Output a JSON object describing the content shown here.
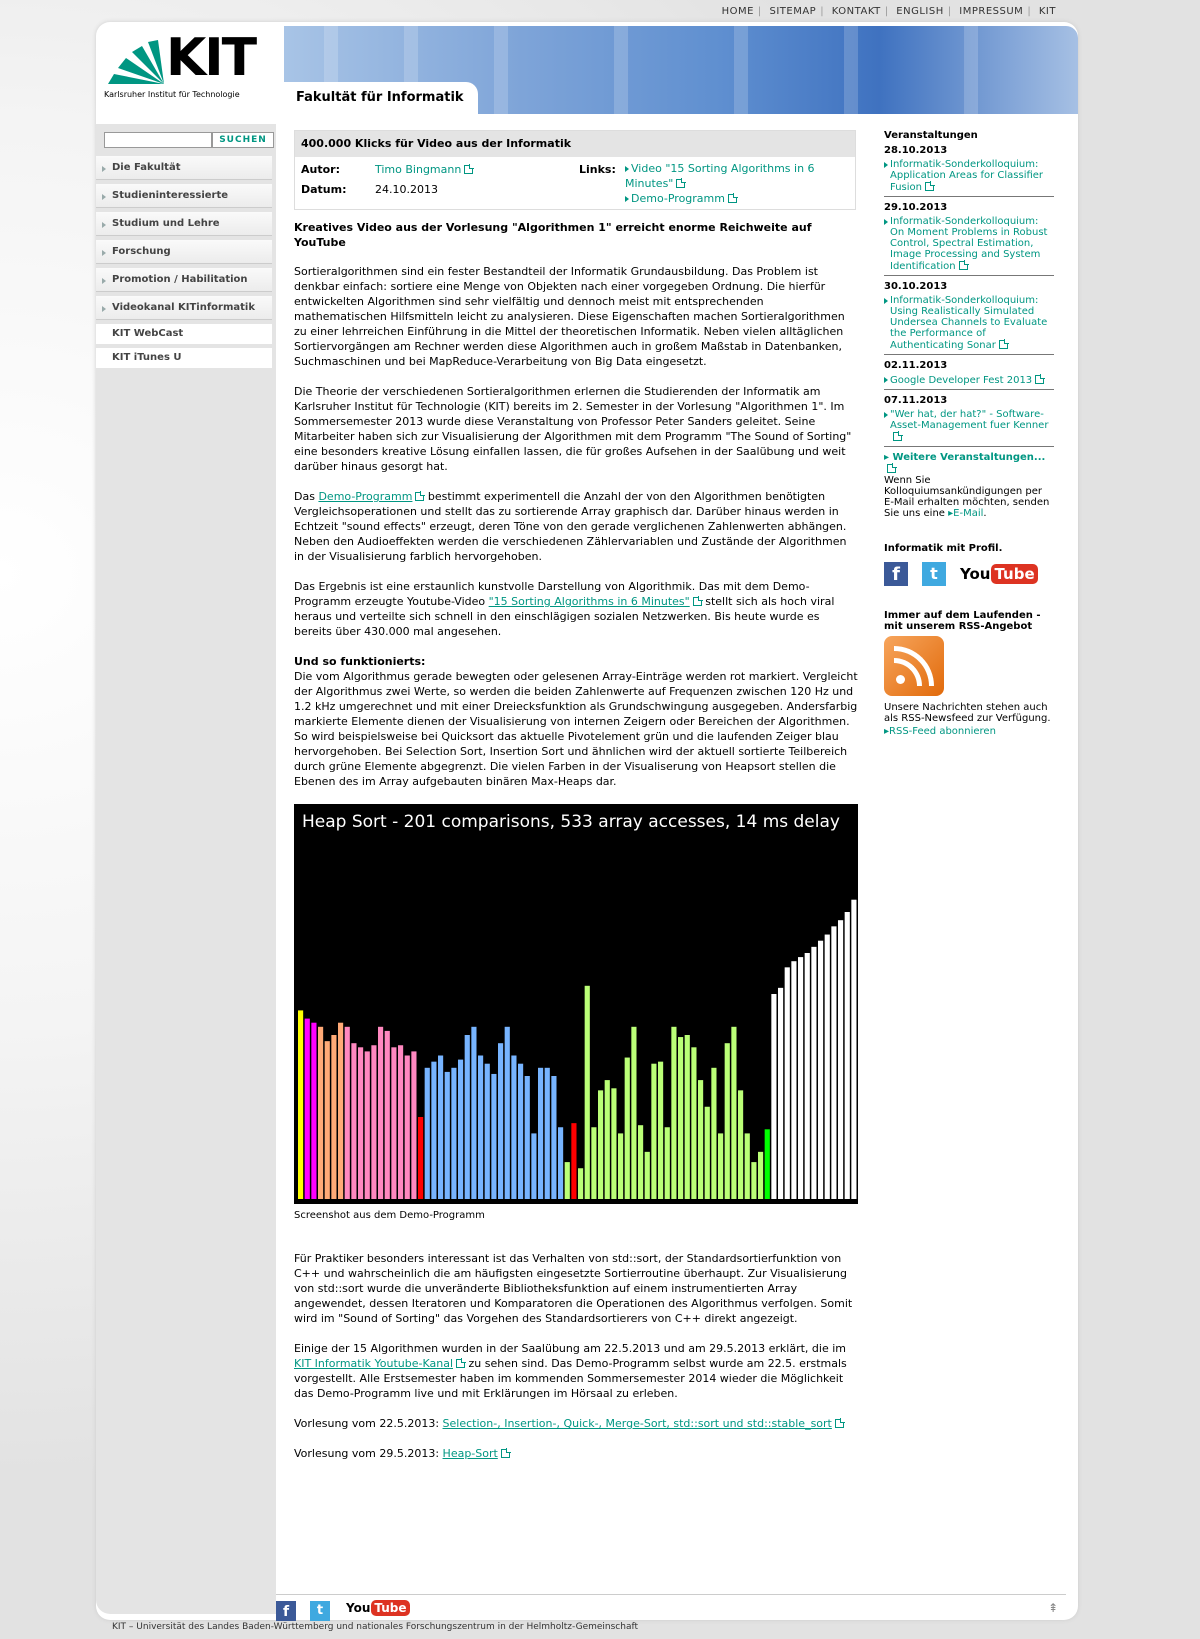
{
  "topnav": [
    "HOME",
    "SITEMAP",
    "KONTAKT",
    "ENGLISH",
    "IMPRESSUM",
    "KIT"
  ],
  "logo": {
    "mark": "KIT",
    "subtitle": "Karlsruher Institut für Technologie"
  },
  "faculty": "Fakultät für Informatik",
  "search": {
    "button": "SUCHEN",
    "placeholder": ""
  },
  "menu": [
    "Die Fakultät",
    "Studieninteressierte",
    "Studium und Lehre",
    "Forschung",
    "Promotion / Habilitation",
    "Videokanal KITinformatik"
  ],
  "menu_plain": [
    "KIT WebCast",
    "KIT iTunes U"
  ],
  "info": {
    "title": "400.000 Klicks für Video aus der Informatik",
    "author_label": "Autor:",
    "author": "Timo Bingmann",
    "date_label": "Datum:",
    "date": "24.10.2013",
    "links_label": "Links:",
    "link1": "Video \"15 Sorting Algorithms in 6 Minutes\"",
    "link2": "Demo-Programm"
  },
  "article": {
    "headline": "Kreatives Video aus der Vorlesung \"Algorithmen 1\" erreicht enorme Reichweite auf YouTube",
    "p1": "Sortieralgorithmen sind ein fester Bestandteil der Informatik Grundausbildung. Das Problem ist denkbar einfach: sortiere eine Menge von Objekten nach einer vorgegeben Ordnung. Die hierfür entwickelten Algorithmen sind sehr vielfältig und dennoch meist mit entsprechenden mathematischen Hilfsmitteln leicht zu analysieren. Diese Eigenschaften machen Sortieralgorithmen zu einer lehrreichen Einführung in die Mittel der theoretischen Informatik. Neben vielen alltäglichen Sortiervorgängen am Rechner werden diese Algorithmen auch in großem Maßstab in Datenbanken, Suchmaschinen und bei MapReduce-Verarbeitung von Big Data eingesetzt.",
    "p2": "Die Theorie der verschiedenen Sortieralgorithmen erlernen die Studierenden der Informatik am Karlsruher Institut für Technologie (KIT) bereits im 2. Semester in der Vorlesung \"Algorithmen 1\". Im Sommersemester 2013 wurde diese Veranstaltung von Professor Peter Sanders geleitet. Seine Mitarbeiter haben sich zur Visualisierung der Algorithmen mit dem Programm \"The Sound of Sorting\" eine besonders kreative Lösung einfallen lassen, die für großes Aufsehen in der Saalübung und weit darüber hinaus gesorgt hat.",
    "p3_pre": "Das ",
    "p3_link": "Demo-Programm",
    "p3_post": " bestimmt experimentell die Anzahl der von den Algorithmen benötigten Vergleichsoperationen und stellt das zu sortierende Array graphisch dar. Darüber hinaus werden in Echtzeit \"sound effects\" erzeugt, deren Töne von den gerade verglichenen Zahlenwerten abhängen. Neben den Audioeffekten werden die verschiedenen Zählervariablen und Zustände der Algorithmen in der Visualisierung farblich hervorgehoben.",
    "p4_pre": "Das Ergebnis ist eine erstaunlich kunstvolle Darstellung von Algorithmik. Das mit dem Demo-Programm erzeugte Youtube-Video ",
    "p4_link": "\"15 Sorting Algorithms in 6 Minutes\"",
    "p4_post": " stellt sich als hoch viral heraus und verteilte sich schnell in den einschlägigen sozialen Netzwerken. Bis heute wurde es bereits über 430.000 mal angesehen.",
    "sub": "Und so funktionierts:",
    "p5": "Die vom Algorithmus gerade bewegten oder gelesenen Array-Einträge werden rot markiert. Vergleicht der Algorithmus zwei Werte, so werden die beiden Zahlenwerte auf Frequenzen zwischen 120 Hz und 1.2 kHz umgerechnet und mit einer Dreiecksfunktion als Grundschwingung ausgegeben. Andersfarbig markierte Elemente dienen der Visualisierung von internen Zeigern oder Bereichen der Algorithmen. So wird beispielsweise bei Quicksort das aktuelle Pivotelement grün und die laufenden Zeiger blau hervorgehoben. Bei Selection Sort, Insertion Sort und ähnlichen wird der aktuell sortierte Teilbereich durch grüne Elemente abgegrenzt.  Die vielen Farben in der Visualiserung von Heapsort stellen die Ebenen des im Array aufgebauten binären Max-Heaps dar.",
    "viz_title": "Heap Sort - 201 comparisons, 533 array accesses, 14 ms delay",
    "caption": "Screenshot aus dem Demo-Programm",
    "p6": "Für Praktiker besonders interessant ist das Verhalten von std::sort, der Standardsortierfunktion von C++  und wahrscheinlich die am häufigsten eingesetzte Sortierroutine überhaupt. Zur Visualisierung von std::sort wurde die unveränderte Bibliotheksfunktion auf einem instrumentierten Array angewendet, dessen Iteratoren und Komparatoren die Operationen des Algorithmus verfolgen. Somit wird im \"Sound of Sorting\" das Vorgehen des Standardsortierers von C++ direkt angezeigt.",
    "p7_pre": "Einige der 15 Algorithmen wurden in der Saalübung am 22.5.2013 und am 29.5.2013 erklärt, die im ",
    "p7_link": "KIT Informatik Youtube-Kanal",
    "p7_post": " zu sehen sind. Das Demo-Programm selbst wurde am 22.5. erstmals vorgestellt. Alle Erstsemester haben im kommenden Sommersemester 2014 wieder die Möglichkeit das Demo-Programm live und mit Erklärungen im Hörsaal zu erleben.",
    "p8_pre": "Vorlesung vom 22.5.2013: ",
    "p8_link": "Selection-, Insertion-, Quick-, Merge-Sort, std::sort und std::stable_sort",
    "p9_pre": "Vorlesung vom 29.5.2013: ",
    "p9_link": "Heap-Sort"
  },
  "events": {
    "title": "Veranstaltungen",
    "items": [
      {
        "date": "28.10.2013",
        "text": "Informatik-Sonderkolloquium: Application Areas for Classifier Fusion"
      },
      {
        "date": "29.10.2013",
        "text": "Informatik-Sonderkolloquium: On Moment Problems in Robust Control, Spectral Estimation, Image Processing and System Identification"
      },
      {
        "date": "30.10.2013",
        "text": "Informatik-Sonderkolloquium: Using Realistically Simulated Undersea Channels to Evaluate the Performance of Authenticating Sonar"
      },
      {
        "date": "02.11.2013",
        "text": "Google Developer Fest 2013"
      },
      {
        "date": "07.11.2013",
        "text": "\"Wer hat, der hat?\" - Software-Asset-Management fuer Kenner"
      }
    ],
    "more": "Weitere Veranstaltungen...",
    "note_pre": "Wenn Sie Kolloquiumsankündigungen per E-Mail erhalten möchten, senden Sie uns eine ",
    "note_link": "E-Mail",
    "note_post": "."
  },
  "profile": {
    "title": "Informatik mit Profil.",
    "facebook": "f",
    "twitter": "t",
    "youtube_a": "You",
    "youtube_b": "Tube"
  },
  "rss": {
    "title": "Immer auf dem Laufenden - mit unserem RSS-Angebot",
    "text": "Unsere Nachrichten stehen auch als RSS-Newsfeed zur Verfügung.",
    "link": "RSS-Feed abonnieren"
  },
  "footer": "KIT – Universität des Landes Baden-Württemberg und nationales Forschungszentrum in der Helmholtz-Gemeinschaft",
  "chart_data": {
    "type": "bar",
    "title": "Heap Sort - 201 comparisons, 533 array accesses, 14 ms delay",
    "values": [
      92,
      88,
      86,
      84,
      77,
      80,
      86,
      84,
      76,
      74,
      72,
      75,
      84,
      82,
      74,
      75,
      70,
      72,
      40,
      64,
      67,
      70,
      62,
      64,
      68,
      80,
      84,
      70,
      66,
      61,
      76,
      84,
      70,
      66,
      60,
      32,
      64,
      64,
      60,
      35,
      18,
      37,
      15,
      104,
      35,
      53,
      58,
      54,
      32,
      69,
      84,
      36,
      23,
      66,
      67,
      35,
      84,
      79,
      80,
      74,
      58,
      45,
      64,
      32,
      76,
      84,
      53,
      32,
      18,
      23,
      34,
      100,
      103,
      113,
      116,
      118,
      120,
      123,
      126,
      129,
      133,
      136,
      140,
      146
    ],
    "colors": [
      "#ffff00",
      "#ff00ff",
      "#ff00ff",
      "#ffaa77",
      "#ffaa77",
      "#ffaa77",
      "#ffaa77",
      "#ff88c0",
      "#ff88c0",
      "#ff88c0",
      "#ff88c0",
      "#ff88c0",
      "#ff88c0",
      "#ff88c0",
      "#ff88c0",
      "#ff88c0",
      "#ff88c0",
      "#ff88c0",
      "#ff0000",
      "#77b4ff",
      "#77b4ff",
      "#77b4ff",
      "#77b4ff",
      "#77b4ff",
      "#77b4ff",
      "#77b4ff",
      "#77b4ff",
      "#77b4ff",
      "#77b4ff",
      "#77b4ff",
      "#77b4ff",
      "#77b4ff",
      "#77b4ff",
      "#77b4ff",
      "#77b4ff",
      "#77b4ff",
      "#77b4ff",
      "#77b4ff",
      "#77b4ff",
      "#77b4ff",
      "#bbff77",
      "#ff0000",
      "#bbff77",
      "#bbff77",
      "#bbff77",
      "#bbff77",
      "#bbff77",
      "#bbff77",
      "#bbff77",
      "#bbff77",
      "#bbff77",
      "#bbff77",
      "#bbff77",
      "#bbff77",
      "#bbff77",
      "#bbff77",
      "#bbff77",
      "#bbff77",
      "#bbff77",
      "#bbff77",
      "#bbff77",
      "#bbff77",
      "#bbff77",
      "#bbff77",
      "#bbff77",
      "#bbff77",
      "#bbff77",
      "#bbff77",
      "#bbff77",
      "#bbff77",
      "#00ff00",
      "#ffffff",
      "#ffffff",
      "#ffffff",
      "#ffffff",
      "#ffffff",
      "#ffffff",
      "#ffffff",
      "#ffffff",
      "#ffffff",
      "#ffffff",
      "#ffffff",
      "#ffffff",
      "#ffffff"
    ]
  }
}
